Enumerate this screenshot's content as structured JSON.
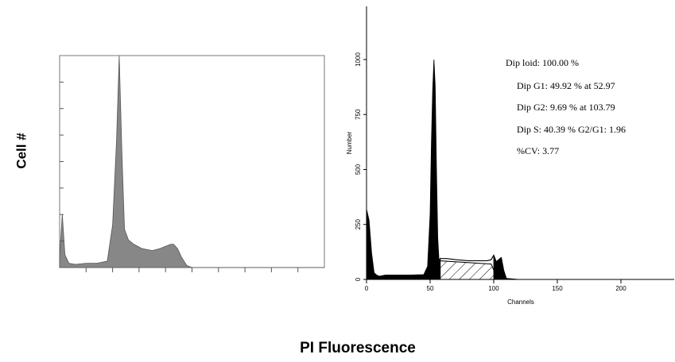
{
  "labels": {
    "y_left": "Cell #",
    "x_main": "PI Fluorescence"
  },
  "chart_data": [
    {
      "type": "area",
      "panel": "left",
      "title": "",
      "xlabel": "",
      "ylabel": "",
      "xlim": [
        0,
        1
      ],
      "ylim": [
        0,
        1
      ],
      "x_tick_count": 10,
      "y_tick_count": 8,
      "series": [
        {
          "x": [
            0,
            0.01,
            0.02,
            0.035,
            0.06,
            0.1,
            0.14,
            0.18,
            0.2,
            0.215,
            0.225,
            0.235,
            0.245,
            0.26,
            0.28,
            0.31,
            0.35,
            0.38,
            0.4,
            0.42,
            0.43,
            0.445,
            0.46,
            0.48,
            0.5,
            0.6,
            1.0
          ],
          "y": [
            0.05,
            0.25,
            0.06,
            0.02,
            0.015,
            0.02,
            0.02,
            0.03,
            0.2,
            0.6,
            1.0,
            0.55,
            0.18,
            0.13,
            0.11,
            0.09,
            0.08,
            0.09,
            0.1,
            0.11,
            0.11,
            0.09,
            0.05,
            0.01,
            0,
            0,
            0
          ]
        }
      ]
    },
    {
      "type": "area",
      "panel": "right",
      "title": "",
      "xlabel": "Channels",
      "ylabel": "Number",
      "xlim": [
        0,
        240
      ],
      "ylim": [
        0,
        1000
      ],
      "x_ticks": [
        0,
        50,
        100,
        150,
        200
      ],
      "x_tick_labels": [
        "0",
        "50",
        "100",
        "150",
        "200"
      ],
      "y_ticks": [
        0,
        250,
        500,
        750,
        1000
      ],
      "y_tick_labels": [
        "0",
        "250",
        "500",
        "750",
        "1000"
      ],
      "series": [
        {
          "name": "",
          "x": [
            0,
            2,
            4,
            6,
            8,
            10,
            15,
            25,
            35,
            45,
            48,
            50,
            51,
            52,
            53,
            54,
            55,
            56,
            57,
            58,
            60,
            63,
            70,
            80,
            90,
            95,
            98,
            100,
            102,
            104,
            106,
            108,
            110,
            120,
            240
          ],
          "y": [
            320,
            270,
            120,
            30,
            20,
            15,
            20,
            20,
            20,
            22,
            60,
            300,
            620,
            860,
            1000,
            880,
            500,
            190,
            85,
            95,
            95,
            95,
            90,
            85,
            85,
            85,
            90,
            110,
            80,
            90,
            100,
            40,
            5,
            0,
            0
          ]
        }
      ],
      "annotations": [
        "Dip loid: 100.00 %",
        "Dip G1: 49.92 % at 52.97",
        "Dip G2: 9.69 % at 103.79",
        "Dip S: 40.39 %  G2/G1: 1.96",
        "%CV: 3.77"
      ]
    }
  ]
}
